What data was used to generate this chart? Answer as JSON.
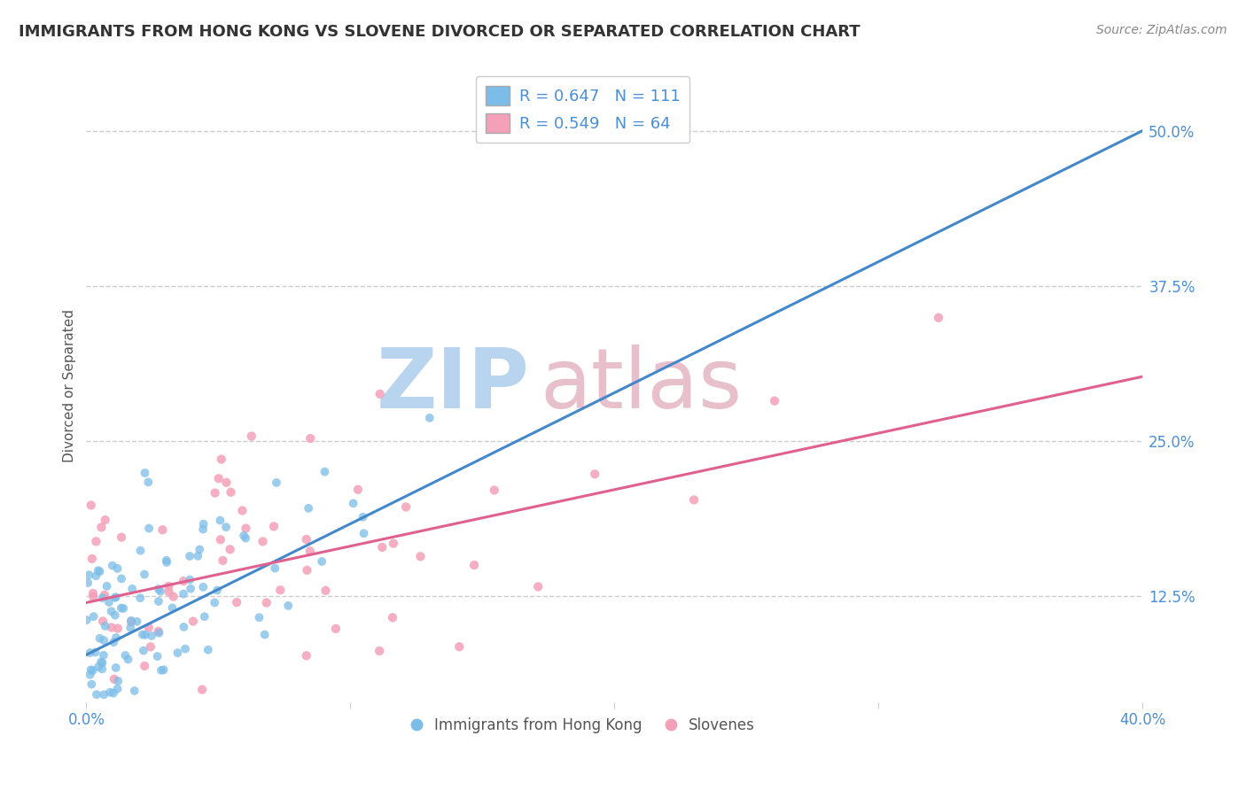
{
  "title": "IMMIGRANTS FROM HONG KONG VS SLOVENE DIVORCED OR SEPARATED CORRELATION CHART",
  "source": "Source: ZipAtlas.com",
  "ylabel": "Divorced or Separated",
  "xlim": [
    0.0,
    0.4
  ],
  "ylim": [
    0.04,
    0.55
  ],
  "xticks": [
    0.0,
    0.1,
    0.2,
    0.3,
    0.4
  ],
  "xtick_labels": [
    "0.0%",
    "",
    "",
    "",
    "40.0%"
  ],
  "ytick_labels_right": [
    "12.5%",
    "25.0%",
    "37.5%",
    "50.0%"
  ],
  "yticks_right": [
    0.125,
    0.25,
    0.375,
    0.5
  ],
  "blue_R": 0.647,
  "blue_N": 111,
  "pink_R": 0.549,
  "pink_N": 64,
  "blue_color": "#7bbde8",
  "pink_color": "#f4a0b8",
  "blue_line_color": "#4488cc",
  "pink_line_color": "#e06090",
  "blue_line_intercept": 0.078,
  "blue_line_slope": 1.055,
  "pink_line_intercept": 0.12,
  "pink_line_slope": 0.455,
  "legend_blue_label": "R = 0.647   N = 111",
  "legend_pink_label": "R = 0.549   N = 64",
  "legend_label_blue": "Immigrants from Hong Kong",
  "legend_label_pink": "Slovenes",
  "watermark_zip": "ZIP",
  "watermark_atlas": "atlas",
  "watermark_zip_color": "#b8d4ef",
  "watermark_atlas_color": "#e8c0cc",
  "background_color": "#ffffff",
  "title_color": "#333333",
  "title_fontsize": 13,
  "axis_label_color": "#555555",
  "tick_label_color": "#4a90d9",
  "grid_color": "#cccccc",
  "seed": 42
}
